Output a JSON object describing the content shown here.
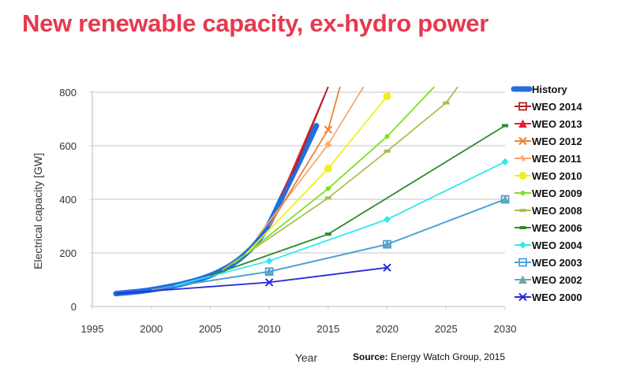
{
  "title": "New renewable capacity, ex-hydro power",
  "source": {
    "label": "Source:",
    "text": " Energy Watch Group, 2015"
  },
  "chart_data": {
    "type": "line",
    "title": "New renewable capacity, ex-hydro power",
    "xlabel": "Year",
    "ylabel": "Electrical capacity [GW]",
    "xlim": [
      1995,
      2030
    ],
    "ylim": [
      0,
      800
    ],
    "xticks": [
      1995,
      2000,
      2005,
      2010,
      2015,
      2020,
      2025,
      2030
    ],
    "yticks": [
      0,
      200,
      400,
      600,
      800
    ],
    "grid": "horizontal",
    "legend_position": "right",
    "series": [
      {
        "name": "History",
        "color": "#1f6fe0",
        "marker": "none",
        "width": 7,
        "x": [
          1997,
          1998,
          1999,
          2000,
          2001,
          2002,
          2003,
          2004,
          2005,
          2006,
          2007,
          2008,
          2009,
          2010,
          2011,
          2012,
          2013,
          2014
        ],
        "y": [
          48,
          52,
          56,
          62,
          70,
          78,
          88,
          100,
          115,
          135,
          160,
          195,
          240,
          305,
          400,
          490,
          580,
          675
        ]
      },
      {
        "name": "WEO 2014",
        "color": "#b22222",
        "marker": "square",
        "x": [
          2012,
          2015
        ],
        "y": [
          495,
          820
        ]
      },
      {
        "name": "WEO 2013",
        "color": "#e8202a",
        "marker": "triangle",
        "x": [
          2011,
          2015
        ],
        "y": [
          410,
          820
        ]
      },
      {
        "name": "WEO 2012",
        "color": "#f08030",
        "marker": "x",
        "x": [
          2010,
          2015,
          2016
        ],
        "y": [
          300,
          660,
          820
        ]
      },
      {
        "name": "WEO 2011",
        "color": "#f4a870",
        "marker": "star",
        "x": [
          2009,
          2015,
          2018
        ],
        "y": [
          260,
          605,
          820
        ]
      },
      {
        "name": "WEO 2010",
        "color": "#f0f020",
        "marker": "circle",
        "x": [
          2008,
          2015,
          2020
        ],
        "y": [
          195,
          515,
          785
        ]
      },
      {
        "name": "WEO 2009",
        "color": "#7fe020",
        "marker": "plus",
        "x": [
          2007,
          2015,
          2020,
          2024
        ],
        "y": [
          160,
          440,
          635,
          820
        ]
      },
      {
        "name": "WEO 2008",
        "color": "#a8c050",
        "marker": "dash",
        "x": [
          2006,
          2015,
          2020,
          2025,
          2026
        ],
        "y": [
          135,
          405,
          580,
          760,
          820
        ]
      },
      {
        "name": "WEO 2006",
        "color": "#2e8b2e",
        "marker": "dash",
        "x": [
          2005,
          2015,
          2030
        ],
        "y": [
          115,
          270,
          675
        ]
      },
      {
        "name": "WEO 2004",
        "color": "#30e8f0",
        "marker": "diamond",
        "x": [
          2002,
          2010,
          2020,
          2030
        ],
        "y": [
          78,
          170,
          325,
          540
        ]
      },
      {
        "name": "WEO 2003",
        "color": "#4aa0d8",
        "marker": "square",
        "x": [
          2001,
          2010,
          2020,
          2030
        ],
        "y": [
          70,
          130,
          232,
          400
        ]
      },
      {
        "name": "WEO 2002",
        "color": "#6aa8a8",
        "marker": "triangle",
        "x": [
          2000,
          2010,
          2020,
          2030
        ],
        "y": [
          62,
          130,
          232,
          400
        ]
      },
      {
        "name": "WEO 2000",
        "color": "#2a2ad8",
        "marker": "x",
        "x": [
          1997,
          2010,
          2020
        ],
        "y": [
          48,
          90,
          145
        ]
      }
    ]
  }
}
